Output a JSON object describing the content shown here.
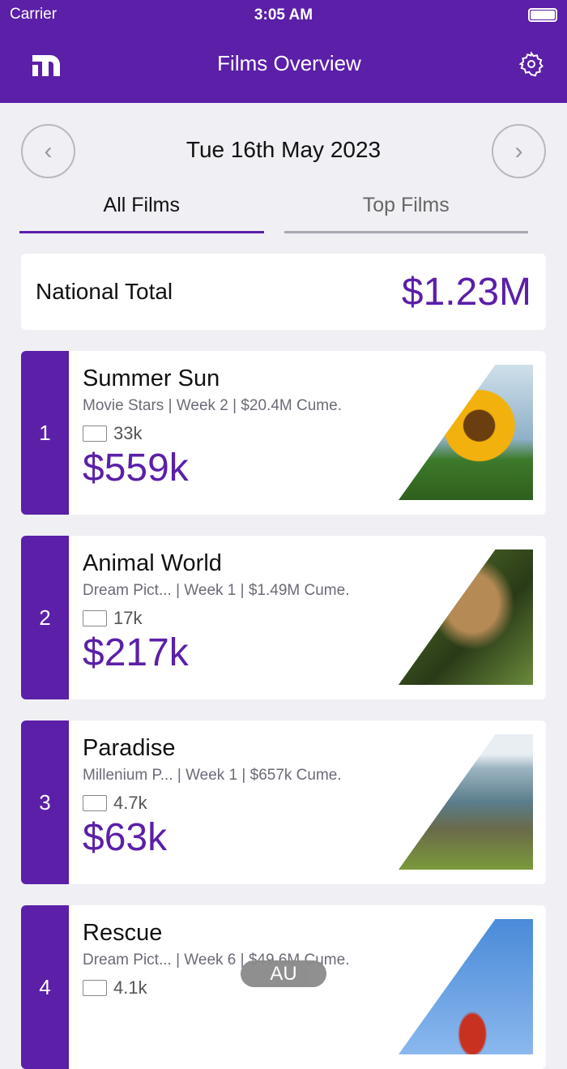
{
  "status_bar": {
    "carrier": "Carrier",
    "time": "3:05 AM"
  },
  "header": {
    "title": "Films Overview",
    "logo_icon": "m-logo-icon",
    "settings_icon": "gear-icon"
  },
  "date_nav": {
    "date": "Tue 16th May 2023",
    "prev": "‹",
    "next": "›"
  },
  "tabs": [
    {
      "label": "All Films",
      "active": true
    },
    {
      "label": "Top Films",
      "active": false
    }
  ],
  "national_total": {
    "label": "National Total",
    "value": "$1.23M"
  },
  "films": [
    {
      "rank": "1",
      "title": "Summer Sun",
      "meta": "Movie Stars | Week 2 | $20.4M Cume.",
      "admissions": "33k",
      "gross": "$559k",
      "image": "sunflower"
    },
    {
      "rank": "2",
      "title": "Animal World",
      "meta": "Dream Pict... | Week 1 | $1.49M Cume.",
      "admissions": "17k",
      "gross": "$217k",
      "image": "cat"
    },
    {
      "rank": "3",
      "title": "Paradise",
      "meta": "Millenium P... | Week 1 | $657k Cume.",
      "admissions": "4.7k",
      "gross": "$63k",
      "image": "coast"
    },
    {
      "rank": "4",
      "title": "Rescue",
      "meta": "Dream Pict... | Week 6 | $49.6M Cume.",
      "admissions": "4.1k",
      "gross": "",
      "image": "helicopter"
    }
  ],
  "region_badge": "AU",
  "colors": {
    "brand": "#5b1fa8",
    "background": "#efeff4"
  }
}
